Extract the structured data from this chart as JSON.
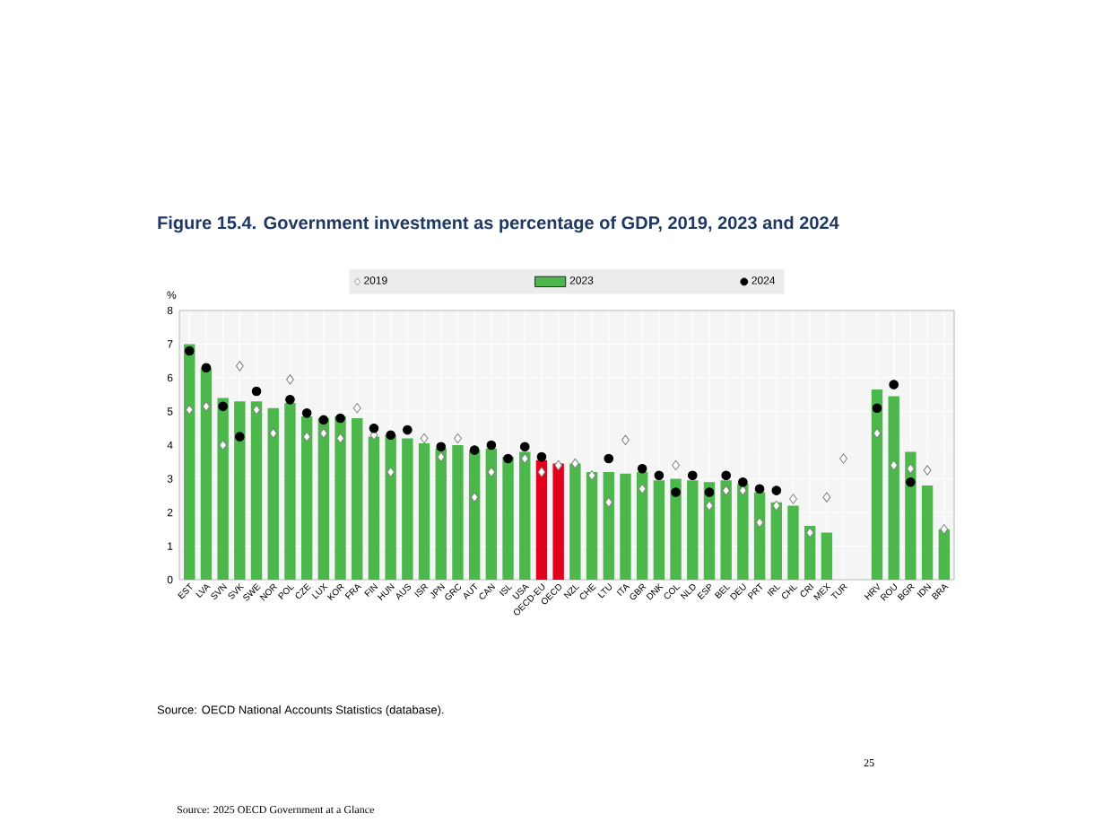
{
  "chart_data": {
    "type": "bar",
    "title": "Figure 15.4. Government investment as percentage of GDP, 2019, 2023 and 2024",
    "ylabel": "%",
    "categories": [
      "EST",
      "LVA",
      "SVN",
      "SVK",
      "SWE",
      "NOR",
      "POL",
      "CZE",
      "LUX",
      "KOR",
      "FRA",
      "FIN",
      "HUN",
      "AUS",
      "ISR",
      "JPN",
      "GRC",
      "AUT",
      "CAN",
      "ISL",
      "USA",
      "OECD-EU",
      "OECD",
      "NZL",
      "CHE",
      "LTU",
      "ITA",
      "GBR",
      "DNK",
      "COL",
      "NLD",
      "ESP",
      "BEL",
      "DEU",
      "PRT",
      "IRL",
      "CHL",
      "CRI",
      "MEX",
      "TUR",
      null,
      "HRV",
      "ROU",
      "BGR",
      "IDN",
      "BRA"
    ],
    "series": [
      {
        "name": "2019",
        "type": "scatter",
        "marker": "diamond",
        "color": "#ffffff",
        "values": [
          5.05,
          5.15,
          4.0,
          6.35,
          5.05,
          4.35,
          5.95,
          4.25,
          4.35,
          4.2,
          5.1,
          4.3,
          3.2,
          null,
          4.2,
          3.65,
          4.2,
          2.45,
          3.2,
          null,
          3.6,
          3.2,
          3.4,
          3.45,
          3.1,
          2.3,
          4.15,
          2.7,
          null,
          3.4,
          null,
          2.2,
          2.65,
          2.65,
          1.7,
          2.2,
          2.4,
          1.4,
          2.45,
          3.6,
          null,
          4.35,
          3.4,
          3.3,
          3.25,
          1.5
        ]
      },
      {
        "name": "2023",
        "color": "#4cb84c",
        "colors": [
          "#4cb84c",
          "#4cb84c",
          "#4cb84c",
          "#4cb84c",
          "#4cb84c",
          "#4cb84c",
          "#4cb84c",
          "#4cb84c",
          "#4cb84c",
          "#4cb84c",
          "#4cb84c",
          "#4cb84c",
          "#4cb84c",
          "#4cb84c",
          "#4cb84c",
          "#4cb84c",
          "#4cb84c",
          "#4cb84c",
          "#4cb84c",
          "#4cb84c",
          "#4cb84c",
          "#e3001b",
          "#e3001b",
          "#4cb84c",
          "#4cb84c",
          "#4cb84c",
          "#4cb84c",
          "#4cb84c",
          "#4cb84c",
          "#4cb84c",
          "#4cb84c",
          "#4cb84c",
          "#4cb84c",
          "#4cb84c",
          "#4cb84c",
          "#4cb84c",
          "#4cb84c",
          "#4cb84c",
          "#4cb84c",
          "#4cb84c",
          "#4cb84c",
          "#4cb84c",
          "#4cb84c",
          "#4cb84c",
          "#4cb84c",
          "#4cb84c"
        ],
        "values": [
          7.0,
          6.3,
          5.4,
          5.3,
          5.3,
          5.1,
          5.25,
          4.85,
          4.8,
          4.85,
          4.8,
          4.25,
          4.3,
          4.2,
          4.05,
          3.9,
          4.0,
          3.85,
          3.9,
          3.65,
          3.8,
          3.55,
          3.45,
          3.45,
          3.2,
          3.2,
          3.15,
          3.2,
          2.95,
          3.0,
          2.95,
          2.9,
          2.95,
          2.85,
          2.6,
          2.3,
          2.2,
          1.6,
          1.4,
          null,
          null,
          5.65,
          5.45,
          3.8,
          2.8,
          1.5
        ]
      },
      {
        "name": "2024",
        "type": "scatter",
        "marker": "circle",
        "color": "#000000",
        "values": [
          6.8,
          6.3,
          5.15,
          4.25,
          5.6,
          null,
          5.35,
          4.95,
          4.75,
          4.8,
          null,
          4.5,
          4.3,
          4.45,
          null,
          3.95,
          null,
          3.85,
          4.0,
          3.6,
          3.95,
          3.65,
          null,
          null,
          null,
          3.6,
          null,
          3.3,
          3.1,
          2.6,
          3.1,
          2.6,
          3.1,
          2.9,
          2.7,
          2.65,
          null,
          null,
          null,
          null,
          null,
          5.1,
          5.8,
          2.9,
          null,
          null
        ]
      }
    ],
    "ylim": [
      0,
      8
    ],
    "yticks": [
      0,
      1,
      2,
      3,
      4,
      5,
      6,
      7,
      8
    ],
    "grid": true,
    "legend": "top",
    "annotations": [
      "Source: OECD National Accounts Statistics (database).",
      "Source: 2025 OECD Government at a Glance",
      "25"
    ]
  }
}
